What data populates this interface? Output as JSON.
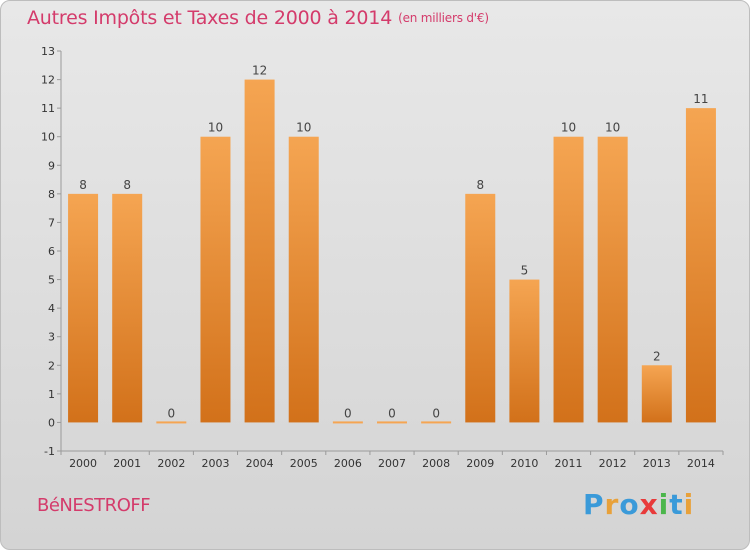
{
  "title": "Autres Impôts et Taxes de 2000 à 2014",
  "unit_label": "(en milliers d'€)",
  "place_label": "BéNESTROFF",
  "brand": {
    "text": "Proxiti",
    "letters": [
      {
        "char": "P",
        "color": "#3a9ad9"
      },
      {
        "char": "r",
        "color": "#e8a13a"
      },
      {
        "char": "o",
        "color": "#3a9ad9"
      },
      {
        "char": "x",
        "color": "#e83a3a"
      },
      {
        "char": "i",
        "color": "#4bb64b"
      },
      {
        "char": "t",
        "color": "#3a9ad9"
      },
      {
        "char": "i",
        "color": "#e8a13a"
      }
    ]
  },
  "colors": {
    "bar_light": "#f5a552",
    "bar_dark": "#d2711a",
    "title": "#d43b6b"
  },
  "chart_data": {
    "type": "bar",
    "title": "Autres Impôts et Taxes de 2000 à 2014",
    "subtitle": "(en milliers d'€)",
    "categories": [
      "2000",
      "2001",
      "2002",
      "2003",
      "2004",
      "2005",
      "2006",
      "2007",
      "2008",
      "2009",
      "2010",
      "2011",
      "2012",
      "2013",
      "2014"
    ],
    "values": [
      8,
      8,
      0,
      10,
      12,
      10,
      0,
      0,
      0,
      8,
      5,
      10,
      10,
      2,
      11
    ],
    "y_ticks": [
      -1,
      0,
      1,
      2,
      3,
      4,
      5,
      6,
      7,
      8,
      9,
      10,
      11,
      12,
      13
    ],
    "ylim": [
      -1,
      13
    ],
    "grid": false,
    "legend": "none"
  }
}
